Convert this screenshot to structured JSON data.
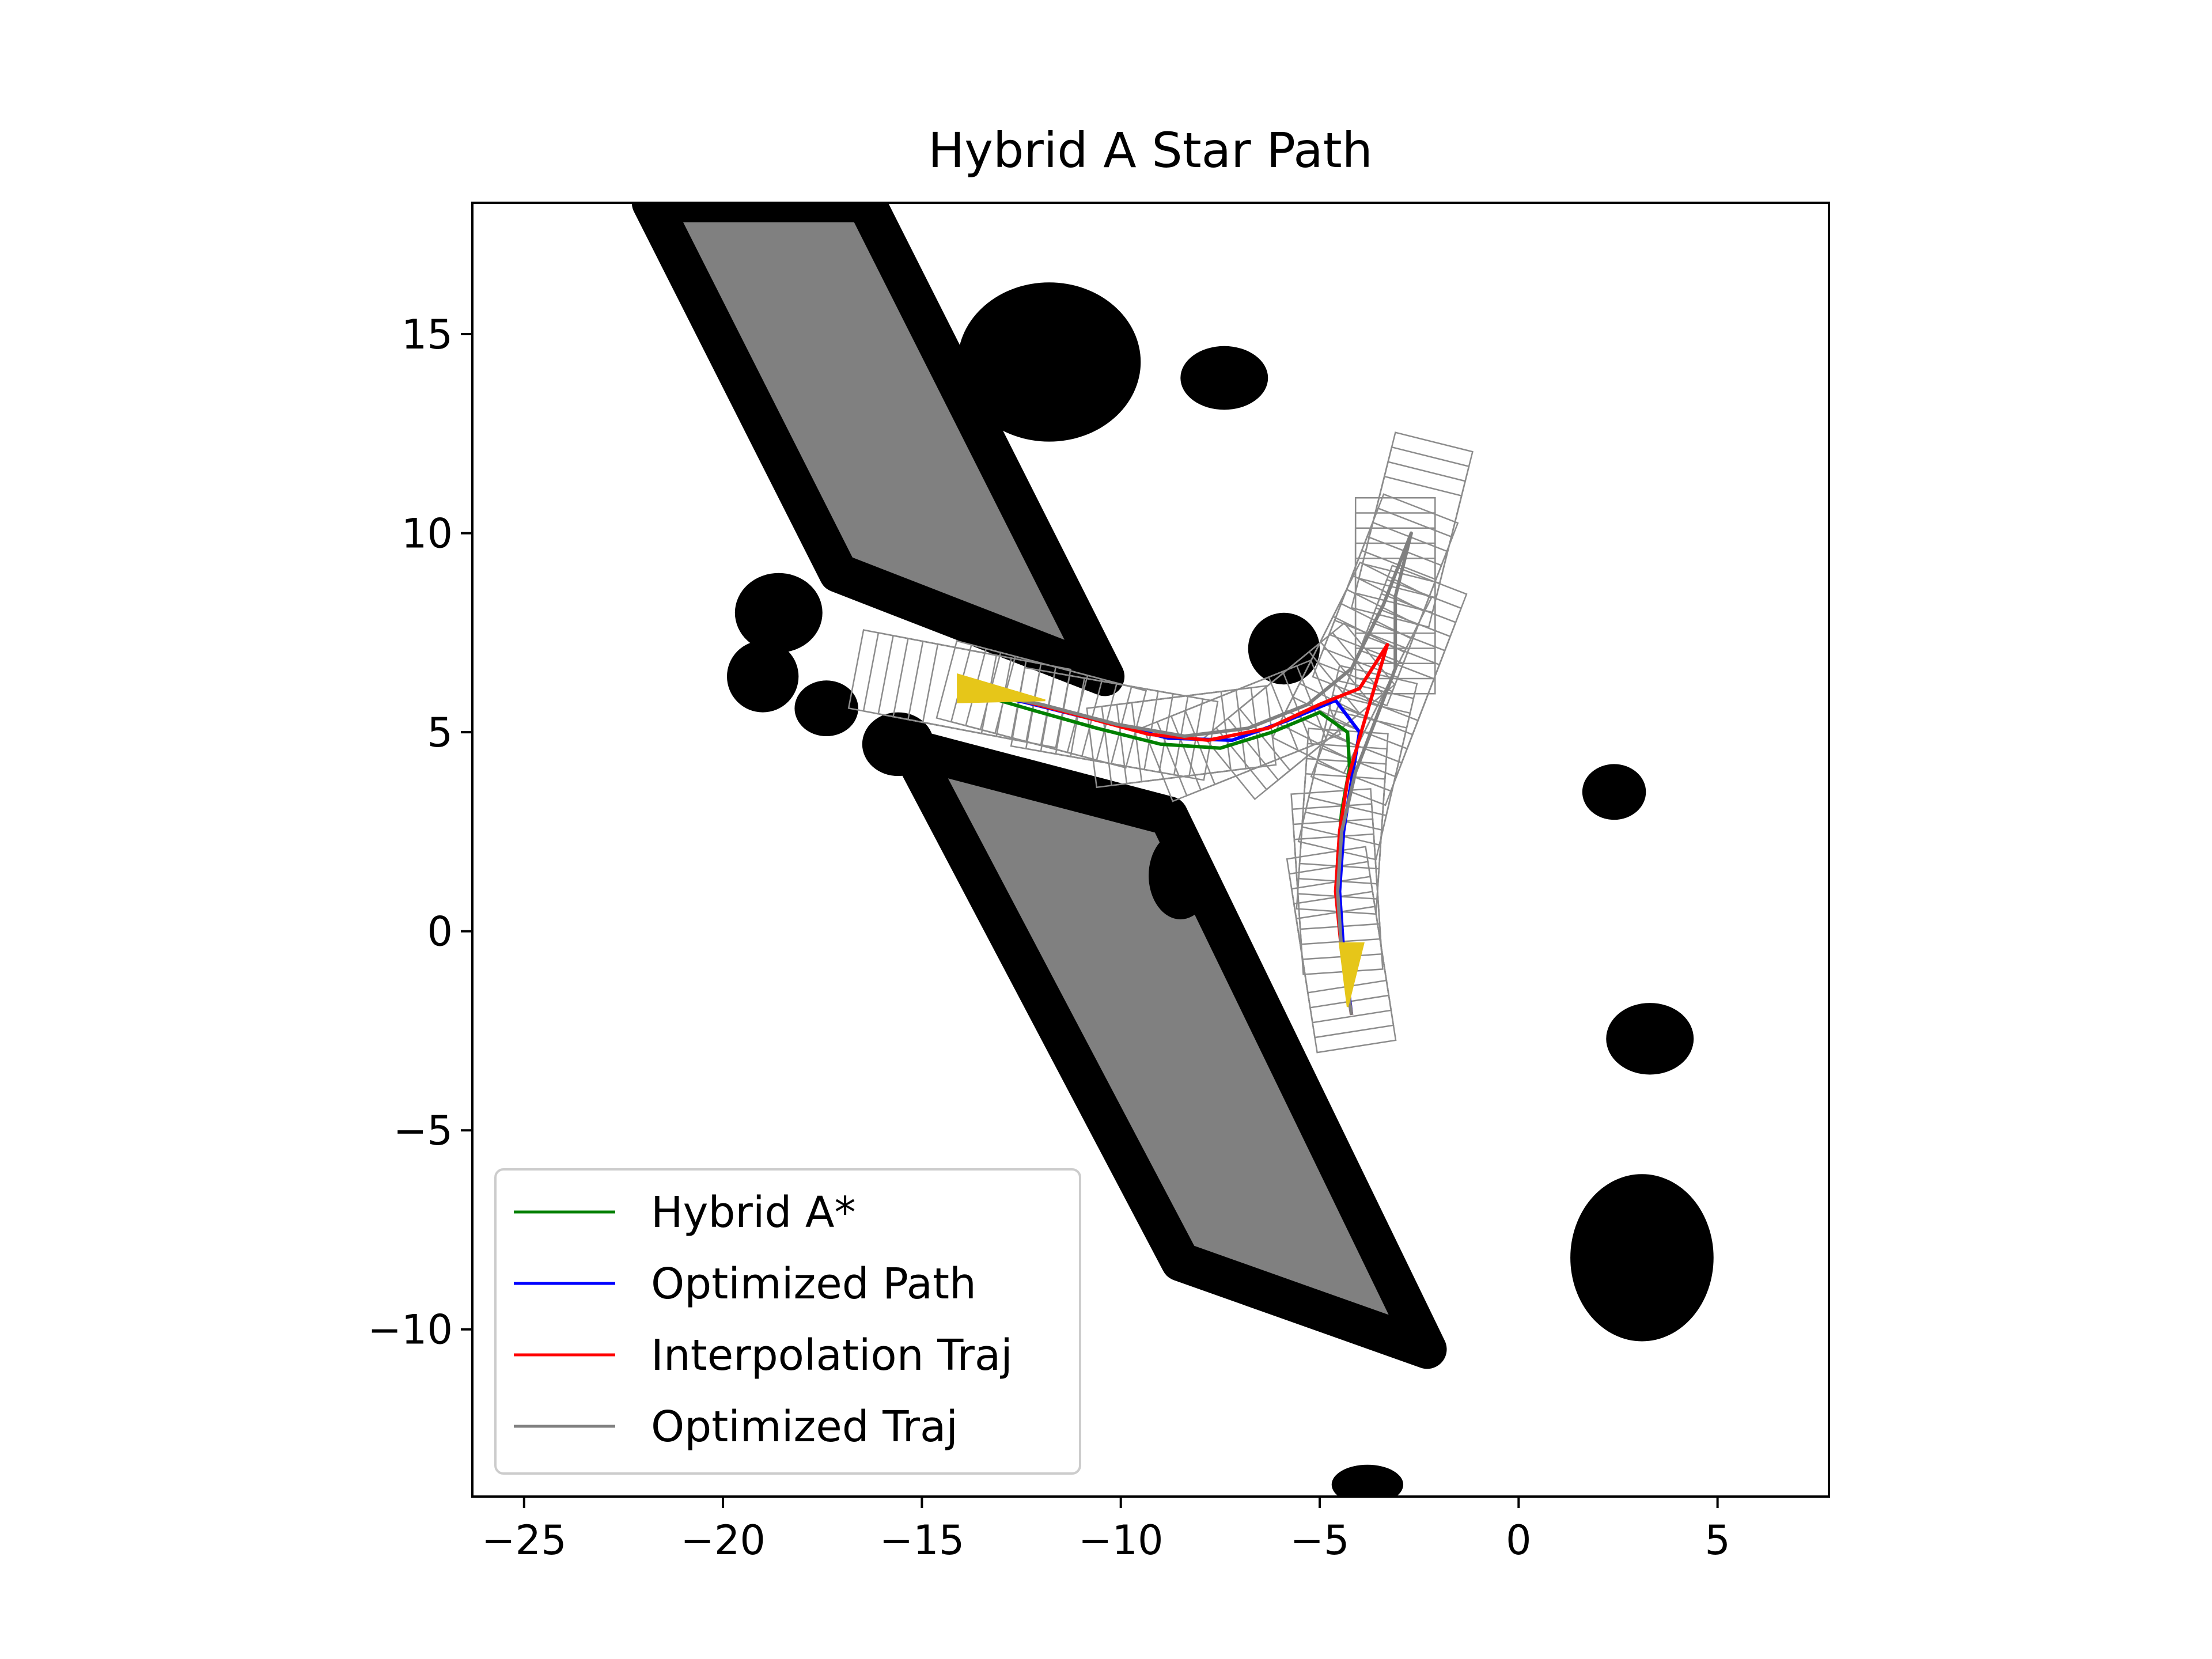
{
  "chart_data": {
    "type": "line",
    "title": "Hybrid A Star Path",
    "xlabel": "",
    "ylabel": "",
    "xlim": [
      -26.3,
      7.8
    ],
    "ylim": [
      -14.2,
      18.3
    ],
    "x_ticks": [
      -25,
      -20,
      -15,
      -10,
      -5,
      0,
      5
    ],
    "y_ticks": [
      -10,
      -5,
      0,
      5,
      10,
      15
    ],
    "x_tick_labels": [
      "−25",
      "−20",
      "−15",
      "−10",
      "−5",
      "0",
      "5"
    ],
    "y_tick_labels": [
      "−10",
      "−5",
      "0",
      "5",
      "10",
      "15"
    ],
    "grid": false,
    "legend_position": "lower-left",
    "series": [
      {
        "name": "Hybrid A*",
        "color": "#008000",
        "points": [
          [
            -4.2,
            -2.1
          ],
          [
            -4.35,
            -1.0
          ],
          [
            -4.5,
            0.5
          ],
          [
            -4.55,
            1.8
          ],
          [
            -4.45,
            3.0
          ],
          [
            -4.25,
            4.1
          ],
          [
            -4.3,
            5.0
          ],
          [
            -5.0,
            5.5
          ],
          [
            -6.2,
            5.0
          ],
          [
            -7.5,
            4.6
          ],
          [
            -9.0,
            4.7
          ],
          [
            -10.6,
            5.1
          ],
          [
            -12.2,
            5.55
          ],
          [
            -14.1,
            6.1
          ]
        ]
      },
      {
        "name": "Optimized Path",
        "color": "#0000ff",
        "points": [
          [
            -4.2,
            -2.1
          ],
          [
            -4.4,
            -0.5
          ],
          [
            -4.5,
            1.0
          ],
          [
            -4.4,
            2.5
          ],
          [
            -4.2,
            3.8
          ],
          [
            -4.0,
            5.0
          ],
          [
            -4.6,
            5.8
          ],
          [
            -5.8,
            5.3
          ],
          [
            -7.2,
            4.8
          ],
          [
            -8.8,
            4.85
          ],
          [
            -10.6,
            5.3
          ],
          [
            -12.4,
            5.75
          ],
          [
            -14.1,
            6.1
          ]
        ]
      },
      {
        "name": "Interpolation Traj",
        "color": "#ff0000",
        "points": [
          [
            -4.2,
            -2.1
          ],
          [
            -4.45,
            -0.5
          ],
          [
            -4.6,
            1.0
          ],
          [
            -4.5,
            2.5
          ],
          [
            -4.3,
            3.8
          ],
          [
            -3.9,
            5.2
          ],
          [
            -3.3,
            7.2
          ],
          [
            -4.0,
            6.1
          ],
          [
            -5.0,
            5.7
          ],
          [
            -6.3,
            5.1
          ],
          [
            -7.8,
            4.8
          ],
          [
            -9.3,
            4.95
          ],
          [
            -10.8,
            5.35
          ],
          [
            -12.5,
            5.8
          ],
          [
            -14.1,
            6.1
          ]
        ]
      },
      {
        "name": "Optimized Traj",
        "color": "#808080",
        "points": [
          [
            -4.2,
            -2.1
          ],
          [
            -4.45,
            -0.5
          ],
          [
            -4.55,
            1.0
          ],
          [
            -4.45,
            2.5
          ],
          [
            -4.1,
            4.0
          ],
          [
            -3.6,
            5.3
          ],
          [
            -3.1,
            6.6
          ],
          [
            -3.1,
            8.4
          ],
          [
            -2.7,
            10.0
          ],
          [
            -3.4,
            8.2
          ],
          [
            -4.2,
            6.6
          ],
          [
            -5.3,
            5.7
          ],
          [
            -6.8,
            5.1
          ],
          [
            -8.4,
            4.9
          ],
          [
            -10.1,
            5.2
          ],
          [
            -12.0,
            5.7
          ],
          [
            -14.1,
            6.1
          ]
        ]
      }
    ]
  },
  "legend": {
    "items": [
      {
        "label": "Hybrid A*",
        "color": "#008000"
      },
      {
        "label": "Optimized Path",
        "color": "#0000ff"
      },
      {
        "label": "Interpolation Traj",
        "color": "#ff0000"
      },
      {
        "label": "Optimized Traj",
        "color": "#808080"
      }
    ]
  },
  "colors": {
    "obstacle_fill": "#808080",
    "obstacle_edge": "#000000",
    "vehicle_marker": "#e6c619",
    "footprint_stroke": "#8c8c8c"
  }
}
